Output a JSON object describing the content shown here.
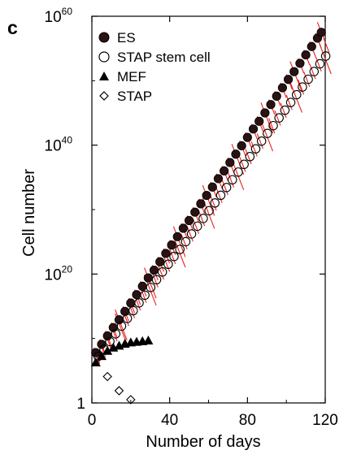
{
  "panel_label": "c",
  "chart_data": {
    "type": "scatter",
    "xlabel": "Number of days",
    "ylabel": "Cell number",
    "xlim": [
      0,
      120
    ],
    "ylim": [
      0,
      60
    ],
    "yscale": "log10",
    "x_ticks": [
      "0",
      "40",
      "80",
      "120"
    ],
    "y_ticks": [
      {
        "base": "1",
        "exp": ""
      },
      {
        "base": "10",
        "exp": "20"
      },
      {
        "base": "10",
        "exp": "40"
      },
      {
        "base": "10",
        "exp": "60"
      }
    ],
    "legend_position": "top-left",
    "grid": false,
    "series": [
      {
        "name": "ES",
        "marker": "filled-circle",
        "color": "#2a1212",
        "fit_color": "#e8201a",
        "x": [
          2,
          5,
          8,
          11,
          14,
          17,
          20,
          23,
          26,
          29,
          32,
          35,
          38,
          41,
          44,
          47,
          50,
          53,
          56,
          59,
          62,
          65,
          68,
          71,
          74,
          77,
          80,
          83,
          86,
          89,
          92,
          95,
          98,
          101,
          104,
          107,
          110,
          113,
          116,
          118
        ],
        "y": [
          7.8,
          9.1,
          10.4,
          11.7,
          12.9,
          14.2,
          15.5,
          16.8,
          18.1,
          19.4,
          20.6,
          21.9,
          23.2,
          24.5,
          25.8,
          27.1,
          28.3,
          29.6,
          30.9,
          32.2,
          33.5,
          34.8,
          36.0,
          37.3,
          38.6,
          39.9,
          41.2,
          42.5,
          43.7,
          45.0,
          46.3,
          47.6,
          48.9,
          50.2,
          51.4,
          52.7,
          54.0,
          55.3,
          56.6,
          57.5
        ]
      },
      {
        "name": "STAP stem cell",
        "marker": "open-circle",
        "color": "#000000",
        "fit_color": "#e8201a",
        "x": [
          2,
          5,
          8,
          11,
          14,
          17,
          20,
          23,
          26,
          29,
          32,
          35,
          38,
          41,
          44,
          47,
          50,
          53,
          56,
          59,
          62,
          65,
          68,
          71,
          74,
          77,
          80,
          83,
          86,
          89,
          92,
          95,
          98,
          101,
          104,
          107,
          110,
          113,
          116,
          119
        ],
        "y": [
          7.6,
          8.7,
          9.9,
          11.1,
          12.3,
          13.5,
          14.7,
          15.9,
          17.1,
          18.3,
          19.5,
          20.7,
          21.9,
          23.1,
          24.2,
          25.4,
          26.6,
          27.8,
          29.0,
          30.2,
          31.4,
          32.6,
          33.8,
          35.0,
          36.2,
          37.4,
          38.6,
          39.8,
          41.0,
          42.2,
          43.4,
          44.6,
          45.8,
          47.0,
          48.2,
          49.4,
          50.6,
          51.8,
          53.0,
          54.2
        ]
      },
      {
        "name": "MEF",
        "marker": "filled-triangle",
        "color": "#000000",
        "x": [
          2,
          5,
          8,
          11,
          14,
          17,
          20,
          23,
          26,
          29
        ],
        "y": [
          6.3,
          7.3,
          8.1,
          8.6,
          8.9,
          9.2,
          9.4,
          9.5,
          9.6,
          9.7
        ]
      },
      {
        "name": "STAP",
        "marker": "open-diamond",
        "color": "#000000",
        "x": [
          8,
          14,
          20
        ],
        "y": [
          4.1,
          1.9,
          0.5
        ]
      }
    ]
  }
}
